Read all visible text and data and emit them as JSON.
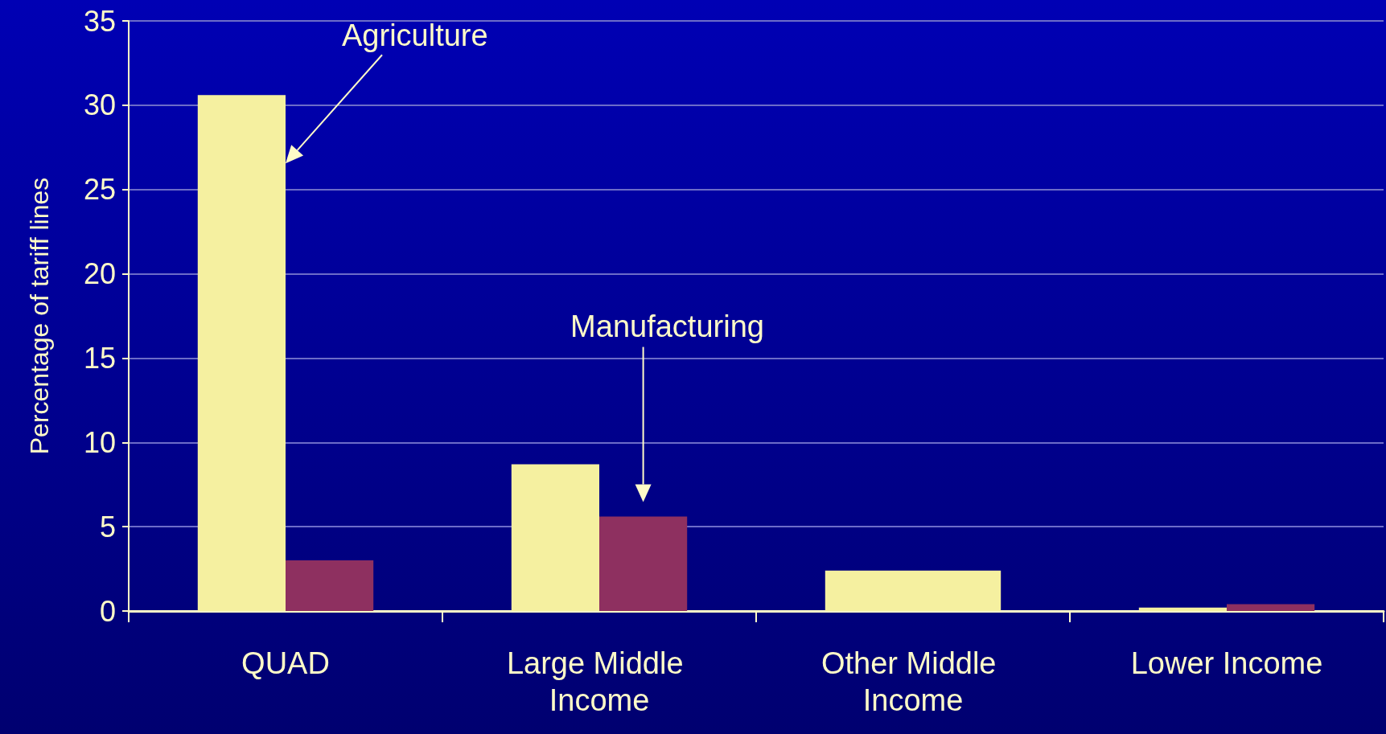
{
  "chart_data": {
    "type": "bar",
    "ylabel": "Percentage of tariff lines",
    "categories": [
      "QUAD",
      "Large Middle Income",
      "Other Middle Income",
      "Lower Income"
    ],
    "series": [
      {
        "color": "#f5f0a0",
        "values": [
          30.6,
          8.7,
          2.4,
          0.2
        ]
      },
      {
        "color": "#8e3060",
        "colors": [
          "#8e3060",
          "#8e3060",
          "#f5f0a0",
          "#8e3060"
        ],
        "values": [
          3.0,
          5.6,
          2.4,
          0.4
        ]
      }
    ],
    "ylim": [
      0,
      35
    ],
    "yticks": [
      0,
      5,
      10,
      15,
      20,
      25,
      30,
      35
    ],
    "grid": "y",
    "annotations": [
      "Agriculture",
      "Manufacturing"
    ]
  }
}
